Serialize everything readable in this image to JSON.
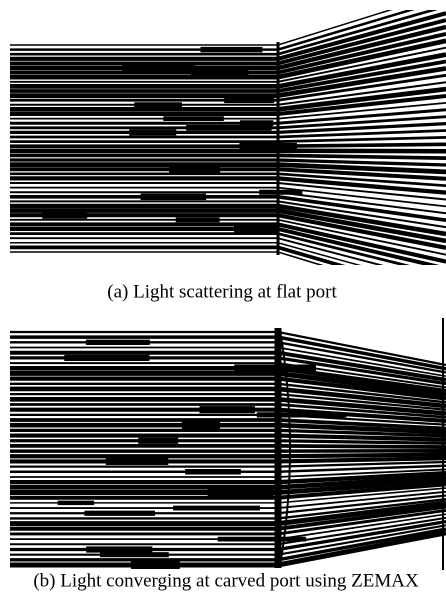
{
  "figure": {
    "captions": [
      "(a) Light scattering at flat port",
      "(b) Light converging at carved port using ZEMAX"
    ]
  }
}
